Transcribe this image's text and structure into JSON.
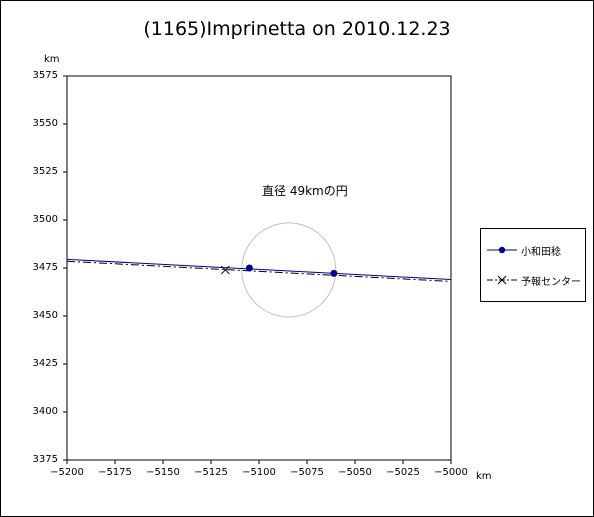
{
  "chart_data": {
    "type": "line",
    "title": "(1165)Imprinetta on 2010.12.23",
    "xlabel": "km",
    "ylabel": "km",
    "xlim": [
      -5200,
      -5000
    ],
    "ylim": [
      3375,
      3575
    ],
    "x_ticks": [
      "−5200",
      "−5175",
      "−5150",
      "−5125",
      "−5100",
      "−5075",
      "−5050",
      "−5025",
      "−5000"
    ],
    "y_ticks": [
      "3575",
      "3550",
      "3525",
      "3500",
      "3475",
      "3450",
      "3425",
      "3400",
      "3375"
    ],
    "annotation": "直径 49kmの円",
    "circle": {
      "center": [
        -5084.5,
        3474
      ],
      "diameter": 49
    },
    "series": [
      {
        "name": "小和田稔",
        "color": "#00008b",
        "line": [
          [
            -5200,
            3479.5
          ],
          [
            -5000,
            3469
          ]
        ],
        "points": [
          [
            -5105,
            3475
          ],
          [
            -5061,
            3472.2
          ]
        ]
      },
      {
        "name": "予報センター",
        "color": "#000000",
        "line": [
          [
            -5200,
            3478.5
          ],
          [
            -5000,
            3468
          ]
        ],
        "points": [
          [
            -5117.5,
            3474
          ]
        ]
      }
    ],
    "legend_position": "right"
  }
}
